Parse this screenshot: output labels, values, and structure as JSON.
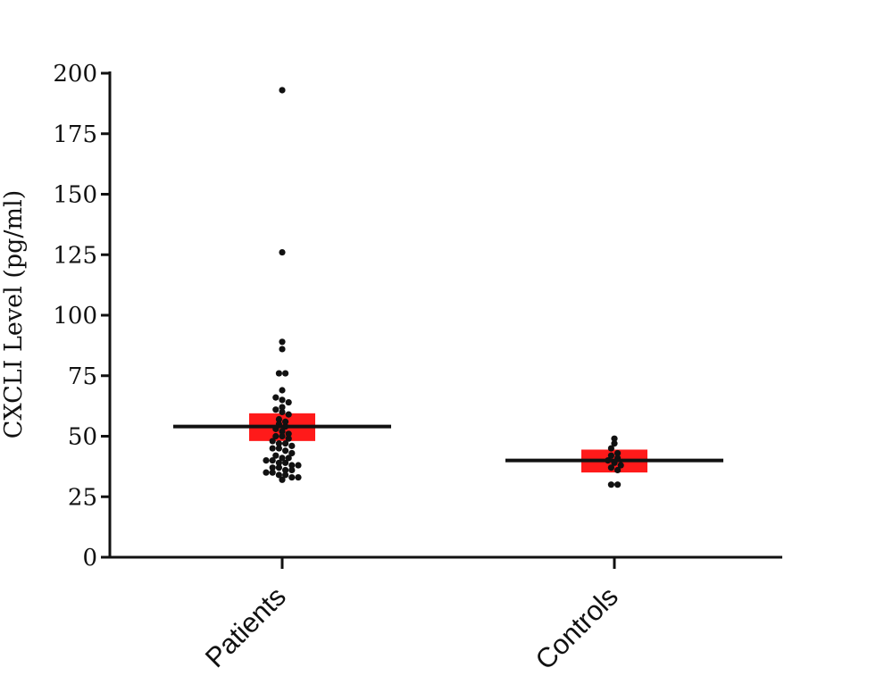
{
  "chart_data": {
    "type": "scatter",
    "ylabel": "CXCLI Level (pg/ml)",
    "xlabel": "",
    "ylim": [
      0,
      200
    ],
    "yticks": [
      "0",
      "25",
      "50",
      "75",
      "100",
      "125",
      "150",
      "175",
      "200"
    ],
    "categories": [
      "Patients",
      "Controls"
    ],
    "grid": false,
    "legend": "none",
    "colors": {
      "points": "#111111",
      "mean_line": "#111111",
      "error_band": "#ff1a1a",
      "axis": "#111111"
    },
    "groups": [
      {
        "category": "Patients",
        "mean": 54,
        "error_range": [
          49.5,
          58
        ],
        "values": [
          193,
          126,
          89,
          86,
          76,
          76,
          69,
          66,
          65,
          64,
          62,
          61,
          60,
          59,
          57,
          56,
          55,
          54,
          53,
          52,
          51,
          50,
          50,
          49,
          48,
          47,
          47,
          46,
          45,
          45,
          44,
          43,
          42,
          41,
          41,
          40,
          40,
          39,
          39,
          38,
          38,
          37,
          37,
          36,
          36,
          35,
          35,
          34,
          34,
          33,
          33,
          32
        ]
      },
      {
        "category": "Controls",
        "mean": 40,
        "error_range": [
          36.5,
          43
        ],
        "values": [
          49,
          47,
          45,
          43,
          42,
          41,
          40,
          39,
          38,
          37,
          36,
          30,
          30
        ]
      }
    ]
  }
}
